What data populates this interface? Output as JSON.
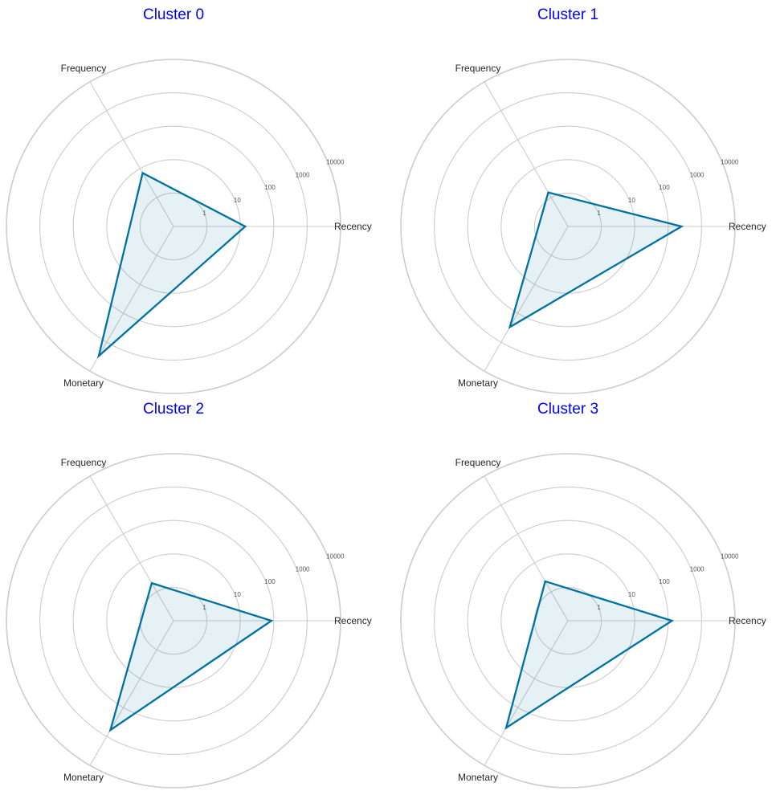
{
  "chart_data": [
    {
      "type": "radar",
      "title": "Cluster 0",
      "axes": [
        "Recency",
        "Frequency",
        "Monetary"
      ],
      "scale": "log",
      "rlim": [
        0.1,
        10000
      ],
      "rticks": [
        "1",
        "10",
        "100",
        "1000",
        "10000"
      ],
      "values": [
        14,
        7,
        3000
      ]
    },
    {
      "type": "radar",
      "title": "Cluster 1",
      "axes": [
        "Recency",
        "Frequency",
        "Monetary"
      ],
      "scale": "log",
      "rlim": [
        0.1,
        10000
      ],
      "rticks": [
        "1",
        "10",
        "100",
        "1000",
        "10000"
      ],
      "values": [
        250,
        1.5,
        300
      ]
    },
    {
      "type": "radar",
      "title": "Cluster 2",
      "axes": [
        "Recency",
        "Frequency",
        "Monetary"
      ],
      "scale": "log",
      "rlim": [
        0.1,
        10000
      ],
      "rticks": [
        "1",
        "10",
        "100",
        "1000",
        "10000"
      ],
      "values": [
        85,
        2,
        600
      ]
    },
    {
      "type": "radar",
      "title": "Cluster 3",
      "axes": [
        "Recency",
        "Frequency",
        "Monetary"
      ],
      "scale": "log",
      "rlim": [
        0.1,
        10000
      ],
      "rticks": [
        "1",
        "10",
        "100",
        "1000",
        "10000"
      ],
      "values": [
        130,
        2.3,
        500
      ]
    }
  ],
  "colors": {
    "title": "#0000ff",
    "series_line": "#0072a0",
    "series_fill": "#0072a0",
    "grid": "#cccccc"
  }
}
